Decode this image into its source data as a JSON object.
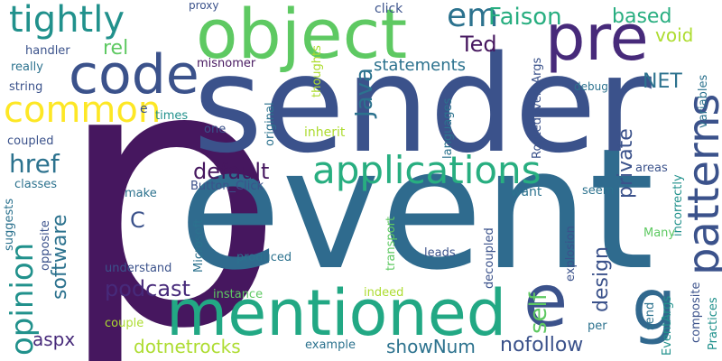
{
  "palette": {
    "dark_purple": "#46175f",
    "purple": "#472a7a",
    "indigo": "#3b528b",
    "blue": "#2c728e",
    "teal": "#21918c",
    "green": "#28ae80",
    "light_green": "#5ec962",
    "lime": "#addc30",
    "yellow": "#fde725"
  },
  "words": {
    "p": "p",
    "event": "event",
    "sender": "sender",
    "object": "object",
    "mentioned": "mentioned",
    "code": "code",
    "pre": "pre",
    "patterns": "patterns",
    "applications": "applications",
    "tightly": "tightly",
    "common": "common",
    "e_big": "e",
    "g": "g",
    "em": "em",
    "faison": "Faison",
    "based": "based",
    "opinion": "opinion",
    "href": "href",
    "ted": "Ted",
    "java": "Java",
    "default": "default",
    "statements": "statements",
    "net": "NET",
    "void": "void",
    "software": "software",
    "podcast": "podcast",
    "self": "self",
    "design": "design",
    "private": "private",
    "rel": "rel",
    "dotnetrocks": "dotnetrocks",
    "shownum": "showNum",
    "nofollow": "nofollow",
    "aspx": "aspx",
    "c": "C",
    "proxy": "proxy",
    "click": "click",
    "debug": "debug",
    "handler": "handler",
    "really": "really",
    "string": "string",
    "misnomer": "misnomer",
    "thoughts": "thoughts",
    "routedeventargs": "RoutedEventArgs",
    "variables": "variables",
    "e_small": "e",
    "times": "times",
    "one": "one",
    "inherit": "inherit",
    "original": "original",
    "languages": "languages",
    "coupled": "coupled",
    "classes": "classes",
    "suggests": "suggests",
    "opposite": "opposite",
    "make": "make",
    "button_click": "Button_Click",
    "microsoft": "Microsoft",
    "transport": "transport",
    "want": "want",
    "seem": "seem",
    "areas": "areas",
    "incorrectly": "incorrectly",
    "understand": "understand",
    "produced": "produced",
    "leads": "leads",
    "decoupled": "decoupled",
    "explosion": "explosion",
    "many": "Many",
    "instance": "instance",
    "indeed": "indeed",
    "send": "send",
    "composite": "composite",
    "practices": "Practices",
    "couple": "couple",
    "per": "per",
    "eventargs": "EventArgs",
    "example": "example"
  }
}
